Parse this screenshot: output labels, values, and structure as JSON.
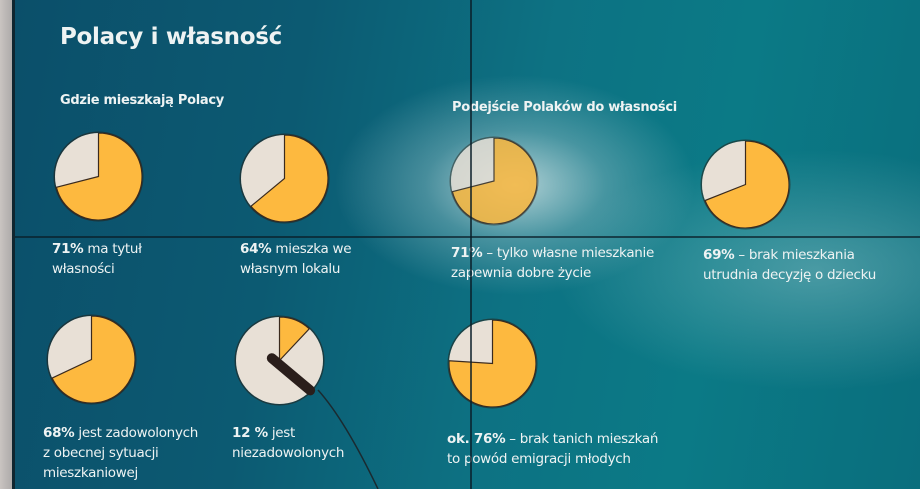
{
  "slide": {
    "title": "Polacy i własność",
    "section_left": "Gdzie mieszkają Polacy",
    "section_right": "Podejście Polaków do własności"
  },
  "colors": {
    "background": "#0c5a72",
    "pie_highlight": "#fdb93f",
    "pie_rest": "#e8e0d6",
    "text": "#eef3f3"
  },
  "pies": [
    {
      "id": "p1",
      "value": 71,
      "bold": "71%",
      "text": " ma tytuł",
      "line2": "własności"
    },
    {
      "id": "p2",
      "value": 64,
      "bold": "64%",
      "text": " mieszka we",
      "line2": "własnym lokalu"
    },
    {
      "id": "p3",
      "value": 71,
      "bold": "71%",
      "text": "  – tylko własne mieszkanie",
      "line2": "zapewnia dobre życie"
    },
    {
      "id": "p4",
      "value": 69,
      "bold": "69%",
      "text": "  – brak mieszkania",
      "line2": "utrudnia decyzję o dziecku"
    },
    {
      "id": "p5",
      "value": 68,
      "bold": "68%",
      "text": " jest zadowolonych",
      "line2": "z obecnej sytuacji",
      "line3": "mieszkaniowej"
    },
    {
      "id": "p6",
      "value": 12,
      "bold": "12 %",
      "text": " jest",
      "line2": "niezadowolonych"
    },
    {
      "id": "p7",
      "value": 76,
      "bold": "ok. 76%",
      "text": " – brak tanich mieszkań",
      "line2": "to powód emigracji młodych"
    }
  ],
  "chart_data": {
    "type": "pie",
    "title": "Polacy i własność",
    "groups": [
      {
        "name": "Gdzie mieszkają Polacy",
        "charts": [
          {
            "label": "71% ma tytuł własności",
            "values": [
              71,
              29
            ]
          },
          {
            "label": "64% mieszka we własnym lokalu",
            "values": [
              64,
              36
            ]
          },
          {
            "label": "68% jest zadowolonych z obecnej sytuacji mieszkaniowej",
            "values": [
              68,
              32
            ]
          },
          {
            "label": "12 % jest niezadowolonych",
            "values": [
              12,
              88
            ]
          }
        ]
      },
      {
        "name": "Podejście Polaków do własności",
        "charts": [
          {
            "label": "71% – tylko własne mieszkanie zapewnia dobre życie",
            "values": [
              71,
              29
            ]
          },
          {
            "label": "69% – brak mieszkania utrudnia decyzję o dziecku",
            "values": [
              69,
              31
            ]
          },
          {
            "label": "ok. 76% – brak tanich mieszkań to powód emigracji młodych",
            "values": [
              76,
              24
            ]
          }
        ]
      }
    ],
    "legend": "none",
    "colors": [
      "#fdb93f",
      "#e8e0d6"
    ]
  }
}
